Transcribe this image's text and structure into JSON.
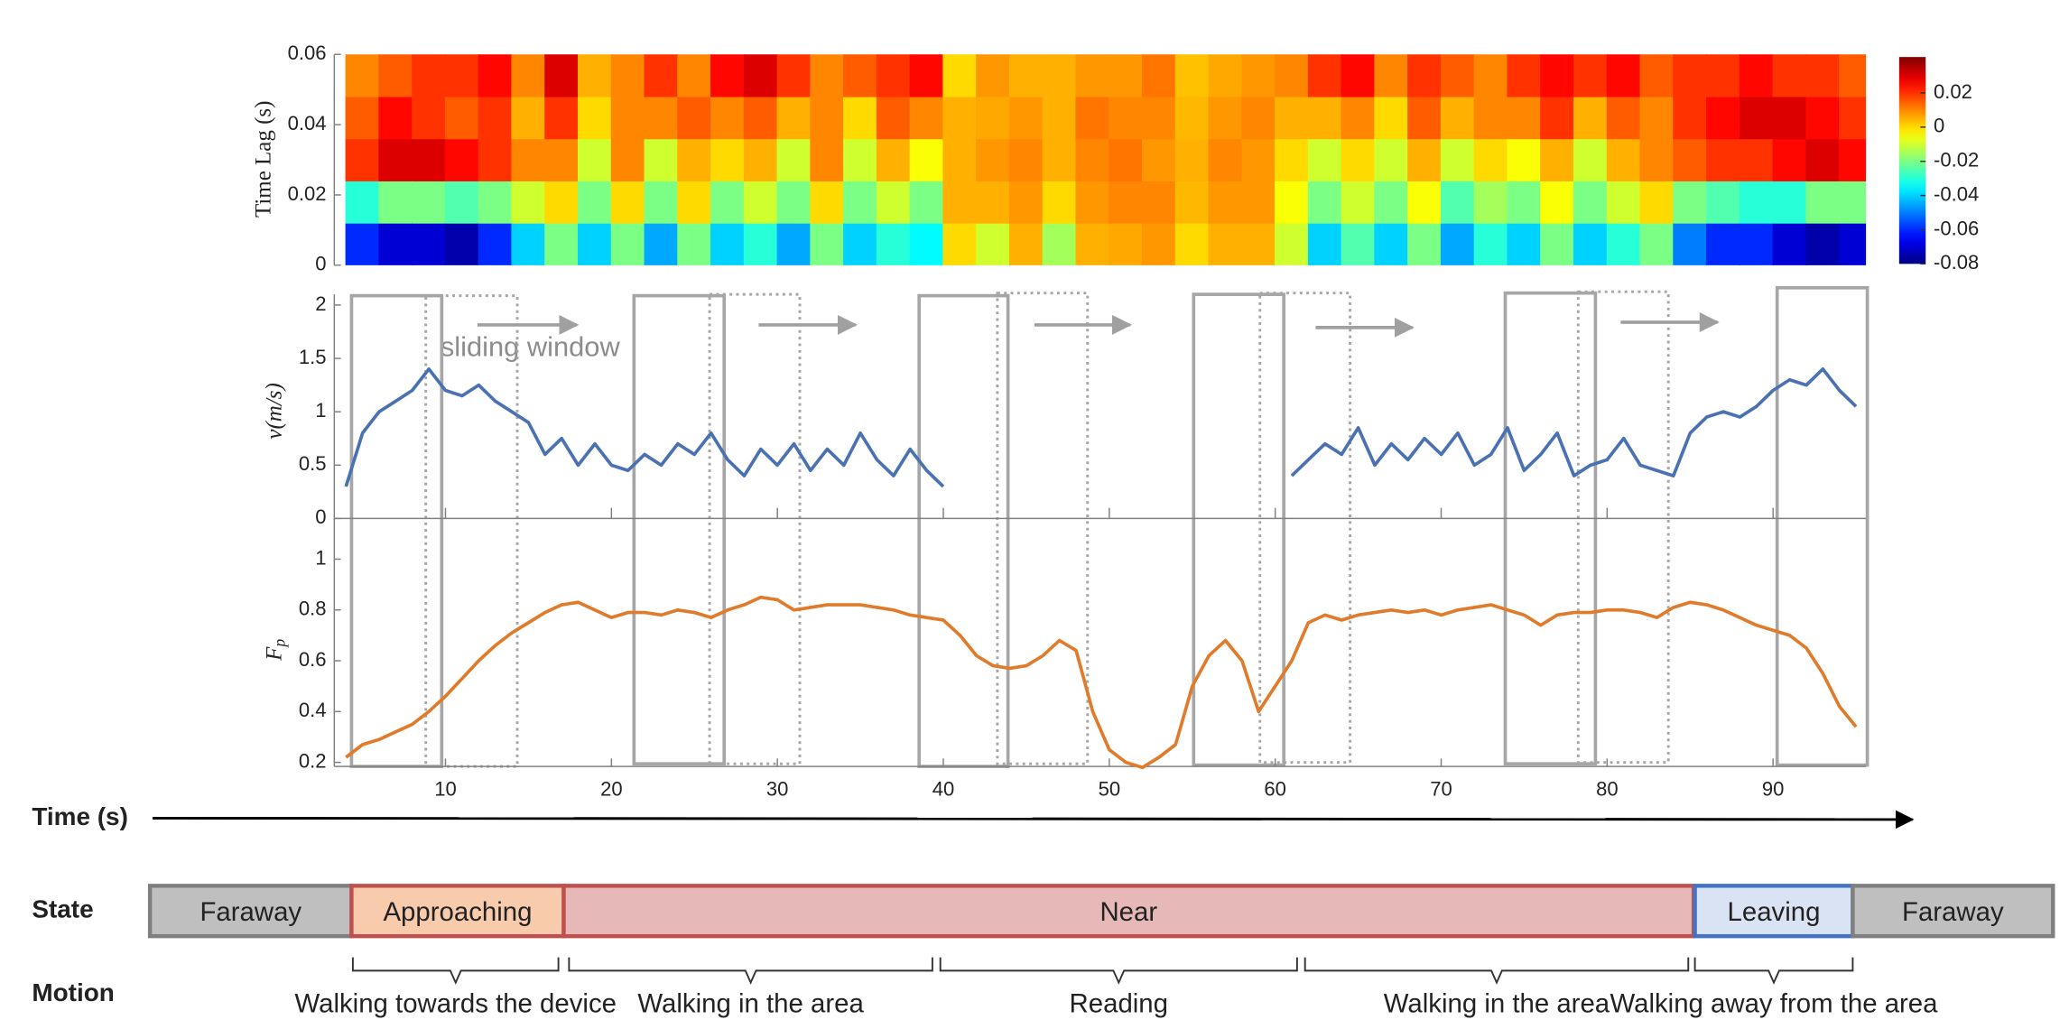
{
  "chart_data": [
    {
      "type": "heatmap",
      "y_label": "Time Lag (s)",
      "colormap": "jet",
      "xlim": [
        3.3,
        95.6
      ],
      "ylim": [
        0,
        0.06
      ],
      "yticks": [
        0,
        0.02,
        0.04,
        0.06
      ],
      "clim": [
        -0.08,
        0.041
      ],
      "colorbar_ticks": [
        0.02,
        0,
        -0.02,
        -0.04,
        -0.06,
        -0.08
      ],
      "x": [
        5,
        7,
        9,
        11,
        13,
        15,
        17,
        19,
        21,
        23,
        25,
        27,
        29,
        31,
        33,
        35,
        37,
        39,
        41,
        43,
        45,
        47,
        49,
        51,
        53,
        55,
        57,
        59,
        61,
        63,
        65,
        67,
        69,
        71,
        73,
        75,
        77,
        79,
        81,
        83,
        85,
        87,
        89,
        91,
        93,
        95
      ],
      "y": [
        0.006,
        0.018,
        0.03,
        0.042,
        0.054
      ],
      "z": [
        [
          -0.06,
          -0.03,
          0.02,
          0.015,
          0.01
        ],
        [
          -0.07,
          -0.02,
          0.03,
          0.025,
          0.015
        ],
        [
          -0.07,
          -0.02,
          0.03,
          0.02,
          0.02
        ],
        [
          -0.075,
          -0.025,
          0.025,
          0.015,
          0.02
        ],
        [
          -0.06,
          -0.02,
          0.02,
          0.02,
          0.025
        ],
        [
          -0.04,
          -0.01,
          0.01,
          0.005,
          0.01
        ],
        [
          -0.02,
          0,
          0.01,
          0.02,
          0.03
        ],
        [
          -0.04,
          -0.02,
          -0.01,
          0,
          0.005
        ],
        [
          -0.02,
          0,
          0.01,
          0.01,
          0.01
        ],
        [
          -0.045,
          -0.02,
          -0.01,
          0.01,
          0.02
        ],
        [
          -0.02,
          0,
          0.005,
          0.015,
          0.01
        ],
        [
          -0.04,
          -0.02,
          0,
          0.01,
          0.025
        ],
        [
          -0.03,
          -0.01,
          0.005,
          0.015,
          0.03
        ],
        [
          -0.045,
          -0.02,
          -0.01,
          0.005,
          0.02
        ],
        [
          -0.02,
          0,
          0.01,
          0.01,
          0.01
        ],
        [
          -0.04,
          -0.02,
          -0.01,
          0,
          0.015
        ],
        [
          -0.03,
          -0.01,
          0.005,
          0.015,
          0.02
        ],
        [
          -0.035,
          -0.02,
          -0.005,
          0.01,
          0.025
        ],
        [
          0,
          0.005,
          0.005,
          0.005,
          0
        ],
        [
          -0.01,
          0.005,
          0.008,
          0.006,
          0.008
        ],
        [
          0.005,
          0.008,
          0.01,
          0.008,
          0.005
        ],
        [
          -0.015,
          0,
          0.005,
          0.005,
          0.005
        ],
        [
          0.005,
          0.008,
          0.01,
          0.012,
          0.008
        ],
        [
          0.006,
          0.01,
          0.012,
          0.01,
          0.008
        ],
        [
          0.008,
          0.01,
          0.008,
          0.01,
          0.012
        ],
        [
          0,
          0.004,
          0.005,
          0.004,
          0.003
        ],
        [
          0.005,
          0.008,
          0.01,
          0.008,
          0.006
        ],
        [
          0.005,
          0.008,
          0.008,
          0.01,
          0.008
        ],
        [
          -0.01,
          -0.005,
          0,
          0.005,
          0.01
        ],
        [
          -0.04,
          -0.02,
          -0.01,
          0.005,
          0.02
        ],
        [
          -0.025,
          -0.01,
          0,
          0.01,
          0.025
        ],
        [
          -0.04,
          -0.02,
          -0.01,
          0,
          0.01
        ],
        [
          -0.02,
          -0.005,
          0.005,
          0.015,
          0.02
        ],
        [
          -0.045,
          -0.025,
          -0.01,
          0.005,
          0.015
        ],
        [
          -0.03,
          -0.015,
          0,
          0.01,
          0.01
        ],
        [
          -0.04,
          -0.02,
          -0.005,
          0.01,
          0.02
        ],
        [
          -0.02,
          -0.005,
          0.005,
          0.02,
          0.025
        ],
        [
          -0.04,
          -0.02,
          -0.01,
          0.005,
          0.02
        ],
        [
          -0.03,
          -0.01,
          0.005,
          0.015,
          0.025
        ],
        [
          -0.02,
          0,
          0.01,
          0.01,
          0.015
        ],
        [
          -0.05,
          -0.02,
          0.015,
          0.02,
          0.02
        ],
        [
          -0.06,
          -0.025,
          0.02,
          0.025,
          0.02
        ],
        [
          -0.06,
          -0.03,
          0.02,
          0.03,
          0.025
        ],
        [
          -0.07,
          -0.03,
          0.025,
          0.03,
          0.02
        ],
        [
          -0.075,
          -0.02,
          0.03,
          0.025,
          0.02
        ],
        [
          -0.07,
          -0.02,
          0.025,
          0.02,
          0.015
        ]
      ]
    },
    {
      "type": "line",
      "y_label": "v(m/s)",
      "annotation": "sliding window",
      "xlim": [
        3.3,
        95.6
      ],
      "ylim": [
        0,
        2.1
      ],
      "yticks": [
        0,
        0.5,
        1,
        1.5,
        2
      ],
      "x": [
        4,
        5,
        6,
        7,
        8,
        9,
        10,
        11,
        12,
        13,
        14,
        15,
        16,
        17,
        18,
        19,
        20,
        21,
        22,
        23,
        24,
        25,
        26,
        27,
        28,
        29,
        30,
        31,
        32,
        33,
        34,
        35,
        36,
        37,
        38,
        39,
        40,
        41,
        42,
        43,
        44,
        45,
        46,
        47,
        48,
        49,
        50,
        51,
        52,
        53,
        54,
        55,
        56,
        57,
        58,
        59,
        60,
        61,
        62,
        63,
        64,
        65,
        66,
        67,
        68,
        69,
        70,
        71,
        72,
        73,
        74,
        75,
        76,
        77,
        78,
        79,
        80,
        81,
        82,
        83,
        84,
        85,
        86,
        87,
        88,
        89,
        90,
        91,
        92,
        93,
        94,
        95
      ],
      "series": [
        {
          "color": "#4a72b3",
          "values": [
            0.3,
            0.8,
            1.0,
            1.1,
            1.2,
            1.4,
            1.2,
            1.15,
            1.25,
            1.1,
            1.0,
            0.9,
            0.6,
            0.75,
            0.5,
            0.7,
            0.5,
            0.45,
            0.6,
            0.5,
            0.7,
            0.6,
            0.8,
            0.55,
            0.4,
            0.65,
            0.5,
            0.7,
            0.45,
            0.65,
            0.5,
            0.8,
            0.55,
            0.4,
            0.65,
            0.45,
            0.3,
            null,
            null,
            null,
            null,
            null,
            null,
            null,
            null,
            null,
            null,
            null,
            null,
            null,
            null,
            null,
            null,
            null,
            null,
            null,
            null,
            0.4,
            0.55,
            0.7,
            0.6,
            0.85,
            0.5,
            0.7,
            0.55,
            0.75,
            0.6,
            0.8,
            0.5,
            0.6,
            0.85,
            0.45,
            0.6,
            0.8,
            0.4,
            0.5,
            0.55,
            0.75,
            0.5,
            0.45,
            0.4,
            0.8,
            0.95,
            1.0,
            0.95,
            1.05,
            1.2,
            1.3,
            1.25,
            1.4,
            1.2,
            1.05
          ]
        }
      ]
    },
    {
      "type": "line",
      "y_label": "F",
      "y_label_sub": "p",
      "xlim": [
        3.3,
        95.6
      ],
      "ylim": [
        0.184,
        1.16
      ],
      "yticks": [
        0.2,
        0.4,
        0.6,
        0.8,
        1
      ],
      "xticks": [
        10,
        20,
        30,
        40,
        50,
        60,
        70,
        80,
        90
      ],
      "x": [
        4,
        5,
        6,
        7,
        8,
        9,
        10,
        11,
        12,
        13,
        14,
        15,
        16,
        17,
        18,
        19,
        20,
        21,
        22,
        23,
        24,
        25,
        26,
        27,
        28,
        29,
        30,
        31,
        32,
        33,
        34,
        35,
        36,
        37,
        38,
        39,
        40,
        41,
        42,
        43,
        44,
        45,
        46,
        47,
        48,
        49,
        50,
        51,
        52,
        53,
        54,
        55,
        56,
        57,
        58,
        59,
        60,
        61,
        62,
        63,
        64,
        65,
        66,
        67,
        68,
        69,
        70,
        71,
        72,
        73,
        74,
        75,
        76,
        77,
        78,
        79,
        80,
        81,
        82,
        83,
        84,
        85,
        86,
        87,
        88,
        89,
        90,
        91,
        92,
        93,
        94,
        95
      ],
      "series": [
        {
          "color": "#e07b2b",
          "values": [
            0.22,
            0.27,
            0.29,
            0.32,
            0.35,
            0.4,
            0.46,
            0.53,
            0.6,
            0.66,
            0.71,
            0.75,
            0.79,
            0.82,
            0.83,
            0.8,
            0.77,
            0.79,
            0.79,
            0.78,
            0.8,
            0.79,
            0.77,
            0.8,
            0.82,
            0.85,
            0.84,
            0.8,
            0.81,
            0.82,
            0.82,
            0.82,
            0.81,
            0.8,
            0.78,
            0.77,
            0.76,
            0.7,
            0.62,
            0.58,
            0.57,
            0.58,
            0.62,
            0.68,
            0.64,
            0.4,
            0.25,
            0.2,
            0.18,
            0.22,
            0.27,
            0.5,
            0.62,
            0.68,
            0.6,
            0.4,
            0.5,
            0.6,
            0.75,
            0.78,
            0.76,
            0.78,
            0.79,
            0.8,
            0.79,
            0.8,
            0.78,
            0.8,
            0.81,
            0.82,
            0.8,
            0.78,
            0.74,
            0.78,
            0.79,
            0.79,
            0.8,
            0.8,
            0.79,
            0.77,
            0.81,
            0.83,
            0.82,
            0.8,
            0.77,
            0.74,
            0.72,
            0.7,
            0.65,
            0.55,
            0.42,
            0.34
          ]
        }
      ]
    }
  ],
  "timeline": {
    "time_label": "Time (s)",
    "state_label": "State",
    "motion_label": "Motion",
    "states": [
      "Faraway",
      "Approaching",
      "Near",
      "Leaving",
      "Faraway"
    ],
    "motions": [
      "Walking towards the device",
      "Walking in the area",
      "Reading",
      "Walking in the area",
      "Walking away from the area"
    ]
  }
}
